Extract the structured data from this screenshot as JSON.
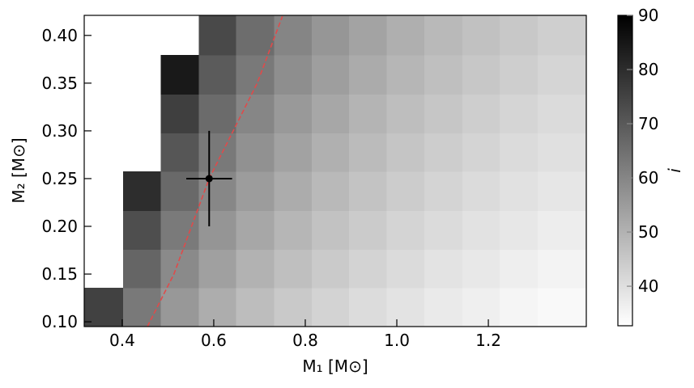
{
  "chart_data": {
    "type": "heatmap",
    "xlabel": "M₁ [M⊙]",
    "ylabel": "M₂ [M⊙]",
    "colorbar_label": "i",
    "colormap": "gray_r",
    "clim": [
      32.7,
      90
    ],
    "cticks": [
      40,
      50,
      60,
      70,
      80,
      90
    ],
    "xlim": [
      0.317,
      1.414
    ],
    "ylim": [
      0.095,
      0.421
    ],
    "xticks": [
      0.4,
      0.6,
      0.8,
      {
        "value": 1.0,
        "label": "1.0"
      },
      1.2
    ],
    "yticks": [
      {
        "value": 0.1,
        "label": "0.10"
      },
      0.15,
      {
        "value": 0.2,
        "label": "0.20"
      },
      0.25,
      {
        "value": 0.3,
        "label": "0.30"
      },
      0.35,
      {
        "value": 0.4,
        "label": "0.40"
      }
    ],
    "x": [
      0.361,
      0.443,
      0.526,
      0.608,
      0.69,
      0.773,
      0.855,
      0.937,
      1.019,
      1.102,
      1.184,
      1.266,
      1.349
    ],
    "y": [
      0.115,
      0.156,
      0.196,
      0.237,
      0.278,
      0.318,
      0.359,
      0.4
    ],
    "z": [
      [
        75.5,
        62.7,
        55.8,
        51.2,
        47.6,
        44.8,
        42.5,
        40.5,
        38.9,
        37.4,
        36.2,
        35.0,
        34.0
      ],
      [
        null,
        67.2,
        59.1,
        54.0,
        50.1,
        47.0,
        44.5,
        42.5,
        40.7,
        39.1,
        37.8,
        36.6,
        35.5
      ],
      [
        null,
        72.4,
        62.5,
        56.6,
        52.5,
        49.1,
        46.5,
        44.3,
        42.4,
        40.7,
        39.3,
        38.0,
        36.8
      ],
      [
        null,
        80.0,
        66.5,
        59.7,
        55.0,
        51.3,
        48.5,
        46.1,
        44.1,
        42.4,
        40.8,
        39.5,
        38.3
      ],
      [
        null,
        null,
        70.7,
        62.7,
        57.5,
        53.5,
        50.4,
        47.9,
        45.8,
        43.9,
        42.3,
        40.9,
        39.6
      ],
      [
        null,
        null,
        75.8,
        65.9,
        60.0,
        55.6,
        52.4,
        49.6,
        47.4,
        45.4,
        43.7,
        42.2,
        40.9
      ],
      [
        null,
        null,
        84.3,
        69.5,
        62.7,
        58.0,
        54.4,
        51.5,
        49.1,
        47.0,
        45.2,
        43.6,
        42.2
      ],
      [
        null,
        null,
        null,
        73.7,
        65.5,
        60.2,
        56.4,
        53.3,
        50.7,
        48.5,
        46.6,
        45.0,
        43.5
      ]
    ],
    "line": {
      "color": "#e04a4a",
      "style": "dashed",
      "x": [
        0.455,
        0.513,
        0.59,
        0.695,
        0.75
      ],
      "y": [
        0.095,
        0.15,
        0.25,
        0.35,
        0.42
      ]
    },
    "errorbar": {
      "color": "#000000",
      "x": 0.59,
      "y": 0.25,
      "xerr": 0.05,
      "yerr": 0.05
    }
  }
}
